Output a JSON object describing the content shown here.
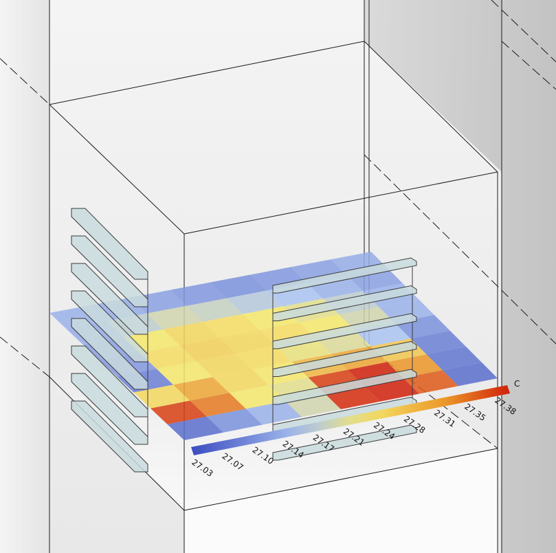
{
  "colorbar": {
    "unit": "C",
    "ticks": [
      "27.03",
      "27.07",
      "27.10",
      "27.14",
      "27.17",
      "27.21",
      "27.24",
      "27.28",
      "27.31",
      "27.35",
      "27.38"
    ]
  },
  "heatmap": {
    "rows": 8,
    "cols": 8,
    "values": [
      [
        0.3,
        0.28,
        0.25,
        0.22,
        0.2,
        0.22,
        0.25,
        0.28
      ],
      [
        0.28,
        0.4,
        0.45,
        0.42,
        0.38,
        0.35,
        0.3,
        0.25
      ],
      [
        0.25,
        0.55,
        0.6,
        0.58,
        0.55,
        0.5,
        0.4,
        0.3
      ],
      [
        0.22,
        0.58,
        0.62,
        0.6,
        0.58,
        0.55,
        0.45,
        0.3
      ],
      [
        0.15,
        0.55,
        0.6,
        0.58,
        0.52,
        0.48,
        0.35,
        0.2
      ],
      [
        0.6,
        0.75,
        0.6,
        0.55,
        0.7,
        0.75,
        0.65,
        0.15
      ],
      [
        0.95,
        0.85,
        0.55,
        0.5,
        0.95,
        1.0,
        0.8,
        0.12
      ],
      [
        0.1,
        0.2,
        0.3,
        0.45,
        0.98,
        1.0,
        0.9,
        0.1
      ]
    ]
  },
  "colors": {
    "background": "#ffffff",
    "room_light": "#f2f2f2",
    "room_dark": "#c8c8c8",
    "panel_fill": "#c9dbdd",
    "panel_stroke": "#3a3a3a",
    "cmap_low": "#3b4cc0",
    "cmap_mid": "#f5e76a",
    "cmap_high": "#d0200a"
  },
  "objects": {
    "left_louver_count": 8,
    "right_louver_count": 7
  }
}
